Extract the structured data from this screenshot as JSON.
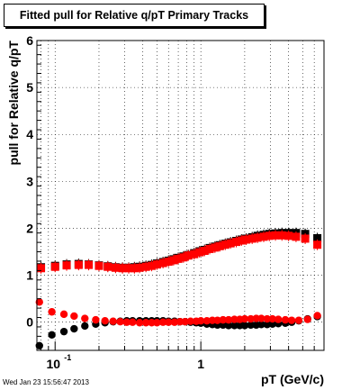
{
  "chart_data": {
    "type": "scatter",
    "title": "Fitted pull for Relative q/pT  Primary Tracks",
    "xlabel": "pT (GeV/c)",
    "ylabel": "pull for Relative q/pT",
    "xscale": "log",
    "xlim": [
      0.075,
      7.0
    ],
    "ylim": [
      -0.6,
      6.0
    ],
    "grid": true,
    "yticks": [
      0,
      1,
      2,
      3,
      4,
      5,
      6
    ],
    "ytick_labels": [
      "0",
      "1",
      "2",
      "3",
      "4",
      "5",
      "6"
    ],
    "xtick_labels": [
      {
        "value": 0.1,
        "base": "10",
        "exp": "-1"
      },
      {
        "value": 1,
        "base": "1",
        "exp": ""
      }
    ],
    "series": [
      {
        "color": "#000000",
        "marker": "square",
        "x": [
          0.08,
          0.1,
          0.12,
          0.145,
          0.17,
          0.2,
          0.23,
          0.26,
          0.29,
          0.32,
          0.35,
          0.38,
          0.42,
          0.46,
          0.5,
          0.55,
          0.6,
          0.65,
          0.7,
          0.76,
          0.82,
          0.9,
          0.98,
          1.06,
          1.15,
          1.25,
          1.35,
          1.47,
          1.6,
          1.75,
          1.9,
          2.05,
          2.25,
          2.45,
          2.7,
          2.95,
          3.25,
          3.6,
          4.0,
          4.5,
          5.2,
          6.3
        ],
        "y": [
          1.17,
          1.2,
          1.23,
          1.24,
          1.23,
          1.21,
          1.19,
          1.17,
          1.16,
          1.16,
          1.17,
          1.18,
          1.2,
          1.22,
          1.25,
          1.28,
          1.31,
          1.34,
          1.37,
          1.4,
          1.43,
          1.47,
          1.51,
          1.54,
          1.58,
          1.61,
          1.64,
          1.67,
          1.7,
          1.73,
          1.76,
          1.78,
          1.81,
          1.84,
          1.86,
          1.88,
          1.89,
          1.9,
          1.9,
          1.9,
          1.88,
          1.79
        ]
      },
      {
        "color": "#ff0000",
        "marker": "square",
        "x": [
          0.08,
          0.1,
          0.12,
          0.145,
          0.17,
          0.2,
          0.23,
          0.26,
          0.29,
          0.32,
          0.35,
          0.38,
          0.42,
          0.46,
          0.5,
          0.55,
          0.6,
          0.65,
          0.7,
          0.76,
          0.82,
          0.9,
          0.98,
          1.06,
          1.15,
          1.25,
          1.35,
          1.47,
          1.6,
          1.75,
          1.9,
          2.05,
          2.25,
          2.45,
          2.7,
          2.95,
          3.25,
          3.6,
          4.0,
          4.5,
          5.2,
          6.3
        ],
        "y": [
          1.15,
          1.18,
          1.21,
          1.22,
          1.22,
          1.2,
          1.18,
          1.16,
          1.15,
          1.15,
          1.15,
          1.16,
          1.18,
          1.2,
          1.23,
          1.26,
          1.29,
          1.32,
          1.35,
          1.38,
          1.42,
          1.45,
          1.49,
          1.52,
          1.56,
          1.59,
          1.62,
          1.65,
          1.68,
          1.71,
          1.74,
          1.76,
          1.78,
          1.8,
          1.82,
          1.84,
          1.85,
          1.85,
          1.84,
          1.82,
          1.78,
          1.65
        ]
      },
      {
        "color": "#000000",
        "marker": "circle",
        "x": [
          0.078,
          0.095,
          0.115,
          0.135,
          0.16,
          0.19,
          0.22,
          0.25,
          0.28,
          0.31,
          0.34,
          0.38,
          0.42,
          0.46,
          0.5,
          0.55,
          0.6,
          0.66,
          0.72,
          0.78,
          0.85,
          0.93,
          1.0,
          1.1,
          1.2,
          1.3,
          1.42,
          1.55,
          1.7,
          1.85,
          2.0,
          2.2,
          2.4,
          2.6,
          2.85,
          3.1,
          3.4,
          3.8,
          4.2,
          4.7,
          5.4,
          6.3
        ],
        "y": [
          -0.5,
          -0.27,
          -0.2,
          -0.14,
          -0.08,
          -0.04,
          -0.01,
          0.01,
          0.02,
          0.03,
          0.03,
          0.03,
          0.03,
          0.03,
          0.03,
          0.03,
          0.02,
          0.02,
          0.01,
          0.01,
          0.0,
          -0.01,
          -0.02,
          -0.04,
          -0.05,
          -0.06,
          -0.06,
          -0.07,
          -0.07,
          -0.07,
          -0.07,
          -0.06,
          -0.06,
          -0.05,
          -0.05,
          -0.04,
          -0.03,
          -0.02,
          0.0,
          0.03,
          0.07,
          0.12
        ]
      },
      {
        "color": "#ff0000",
        "marker": "circle",
        "x": [
          0.078,
          0.095,
          0.115,
          0.135,
          0.16,
          0.19,
          0.22,
          0.25,
          0.28,
          0.31,
          0.34,
          0.38,
          0.42,
          0.46,
          0.5,
          0.55,
          0.6,
          0.66,
          0.72,
          0.78,
          0.85,
          0.93,
          1.0,
          1.1,
          1.2,
          1.3,
          1.42,
          1.55,
          1.7,
          1.85,
          2.0,
          2.2,
          2.4,
          2.6,
          2.85,
          3.1,
          3.4,
          3.8,
          4.2,
          4.7,
          5.4,
          6.3
        ],
        "y": [
          0.43,
          0.22,
          0.17,
          0.13,
          0.08,
          0.05,
          0.03,
          0.02,
          0.01,
          0.0,
          0.0,
          -0.01,
          -0.01,
          -0.01,
          -0.01,
          0.0,
          0.0,
          0.0,
          0.01,
          0.01,
          0.02,
          0.02,
          0.03,
          0.03,
          0.04,
          0.04,
          0.05,
          0.05,
          0.06,
          0.06,
          0.07,
          0.07,
          0.08,
          0.08,
          0.07,
          0.07,
          0.06,
          0.05,
          0.04,
          0.04,
          0.06,
          0.14
        ]
      }
    ]
  },
  "footer": {
    "timestamp": "Wed Jan 23 15:56:47 2013"
  }
}
